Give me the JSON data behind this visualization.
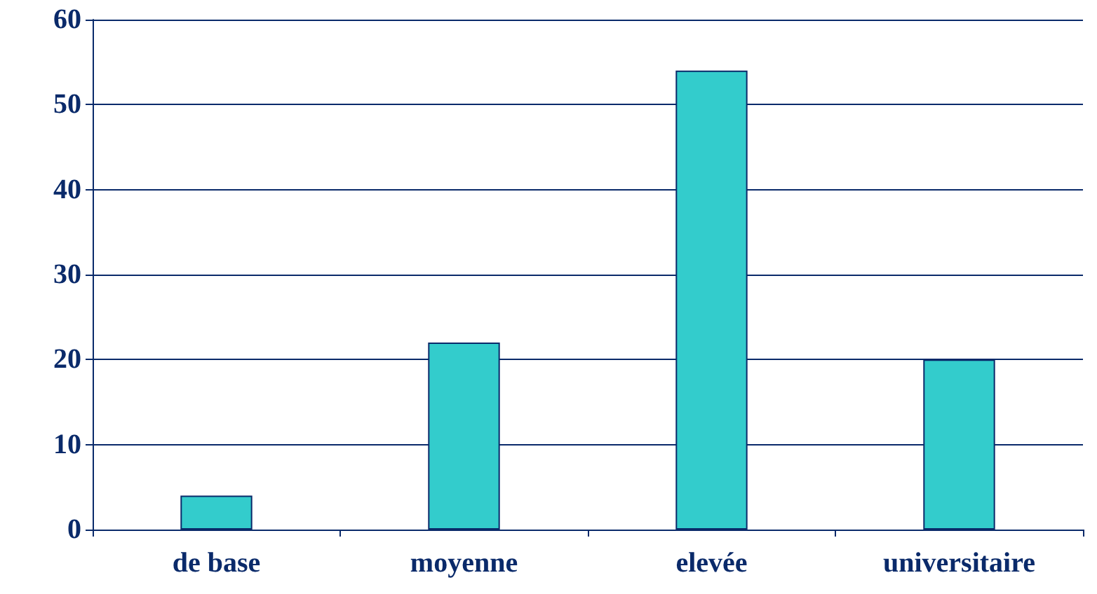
{
  "chart_data": {
    "type": "bar",
    "categories": [
      "de base",
      "moyenne",
      "elevée",
      "universitaire"
    ],
    "values": [
      4,
      22,
      54,
      20
    ],
    "color": "#33cccc",
    "ylim": [
      0,
      60
    ],
    "yticks": [
      0,
      10,
      20,
      30,
      40,
      50,
      60
    ],
    "grid": "y"
  }
}
